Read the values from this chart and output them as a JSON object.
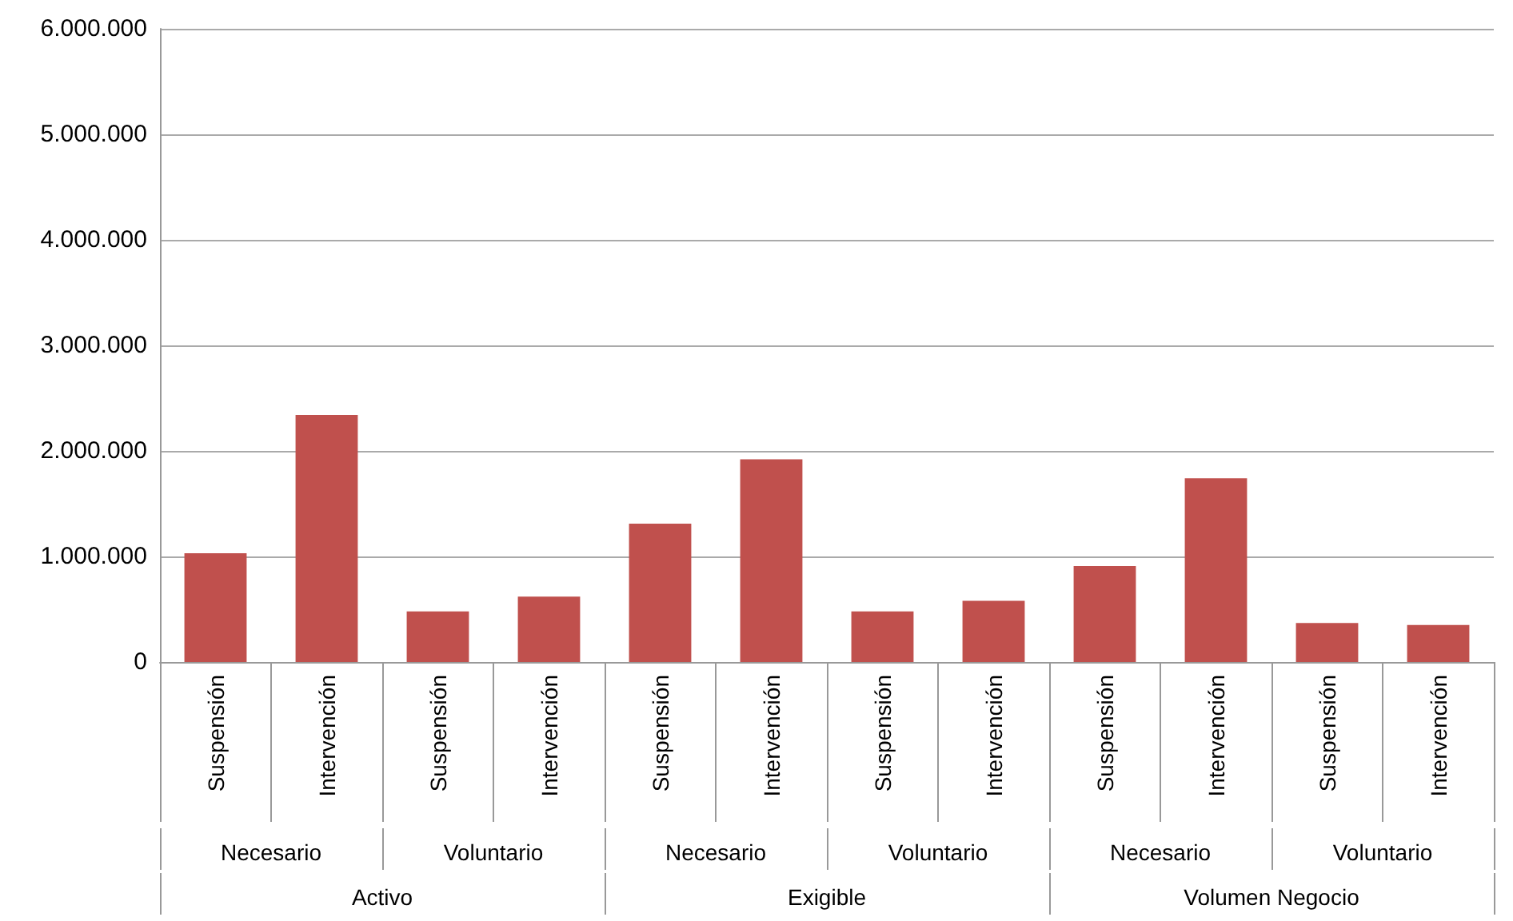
{
  "chart_data": {
    "type": "bar",
    "categories": [
      "Suspensión",
      "Intervención",
      "Suspensión",
      "Intervención",
      "Suspensión",
      "Intervención",
      "Suspensión",
      "Intervención",
      "Suspensión",
      "Intervención",
      "Suspensión",
      "Intervención"
    ],
    "values": [
      1030000,
      2340000,
      480000,
      620000,
      1310000,
      1920000,
      480000,
      580000,
      910000,
      1740000,
      370000,
      350000
    ],
    "color": "#c0504d",
    "ylim": [
      0,
      6000000
    ],
    "yticks": [
      {
        "value": 0,
        "label": "0"
      },
      {
        "value": 1000000,
        "label": "1.000.000"
      },
      {
        "value": 2000000,
        "label": "2.000.000"
      },
      {
        "value": 3000000,
        "label": "3.000.000"
      },
      {
        "value": 4000000,
        "label": "4.000.000"
      },
      {
        "value": 5000000,
        "label": "5.000.000"
      },
      {
        "value": 6000000,
        "label": "6.000.000"
      }
    ],
    "grid": "y",
    "annotations": [
      "Necesario",
      "Voluntario",
      "Necesario",
      "Voluntario",
      "Necesario",
      "Voluntario",
      "Activo",
      "Exigible",
      "Volumen Negocio"
    ]
  }
}
